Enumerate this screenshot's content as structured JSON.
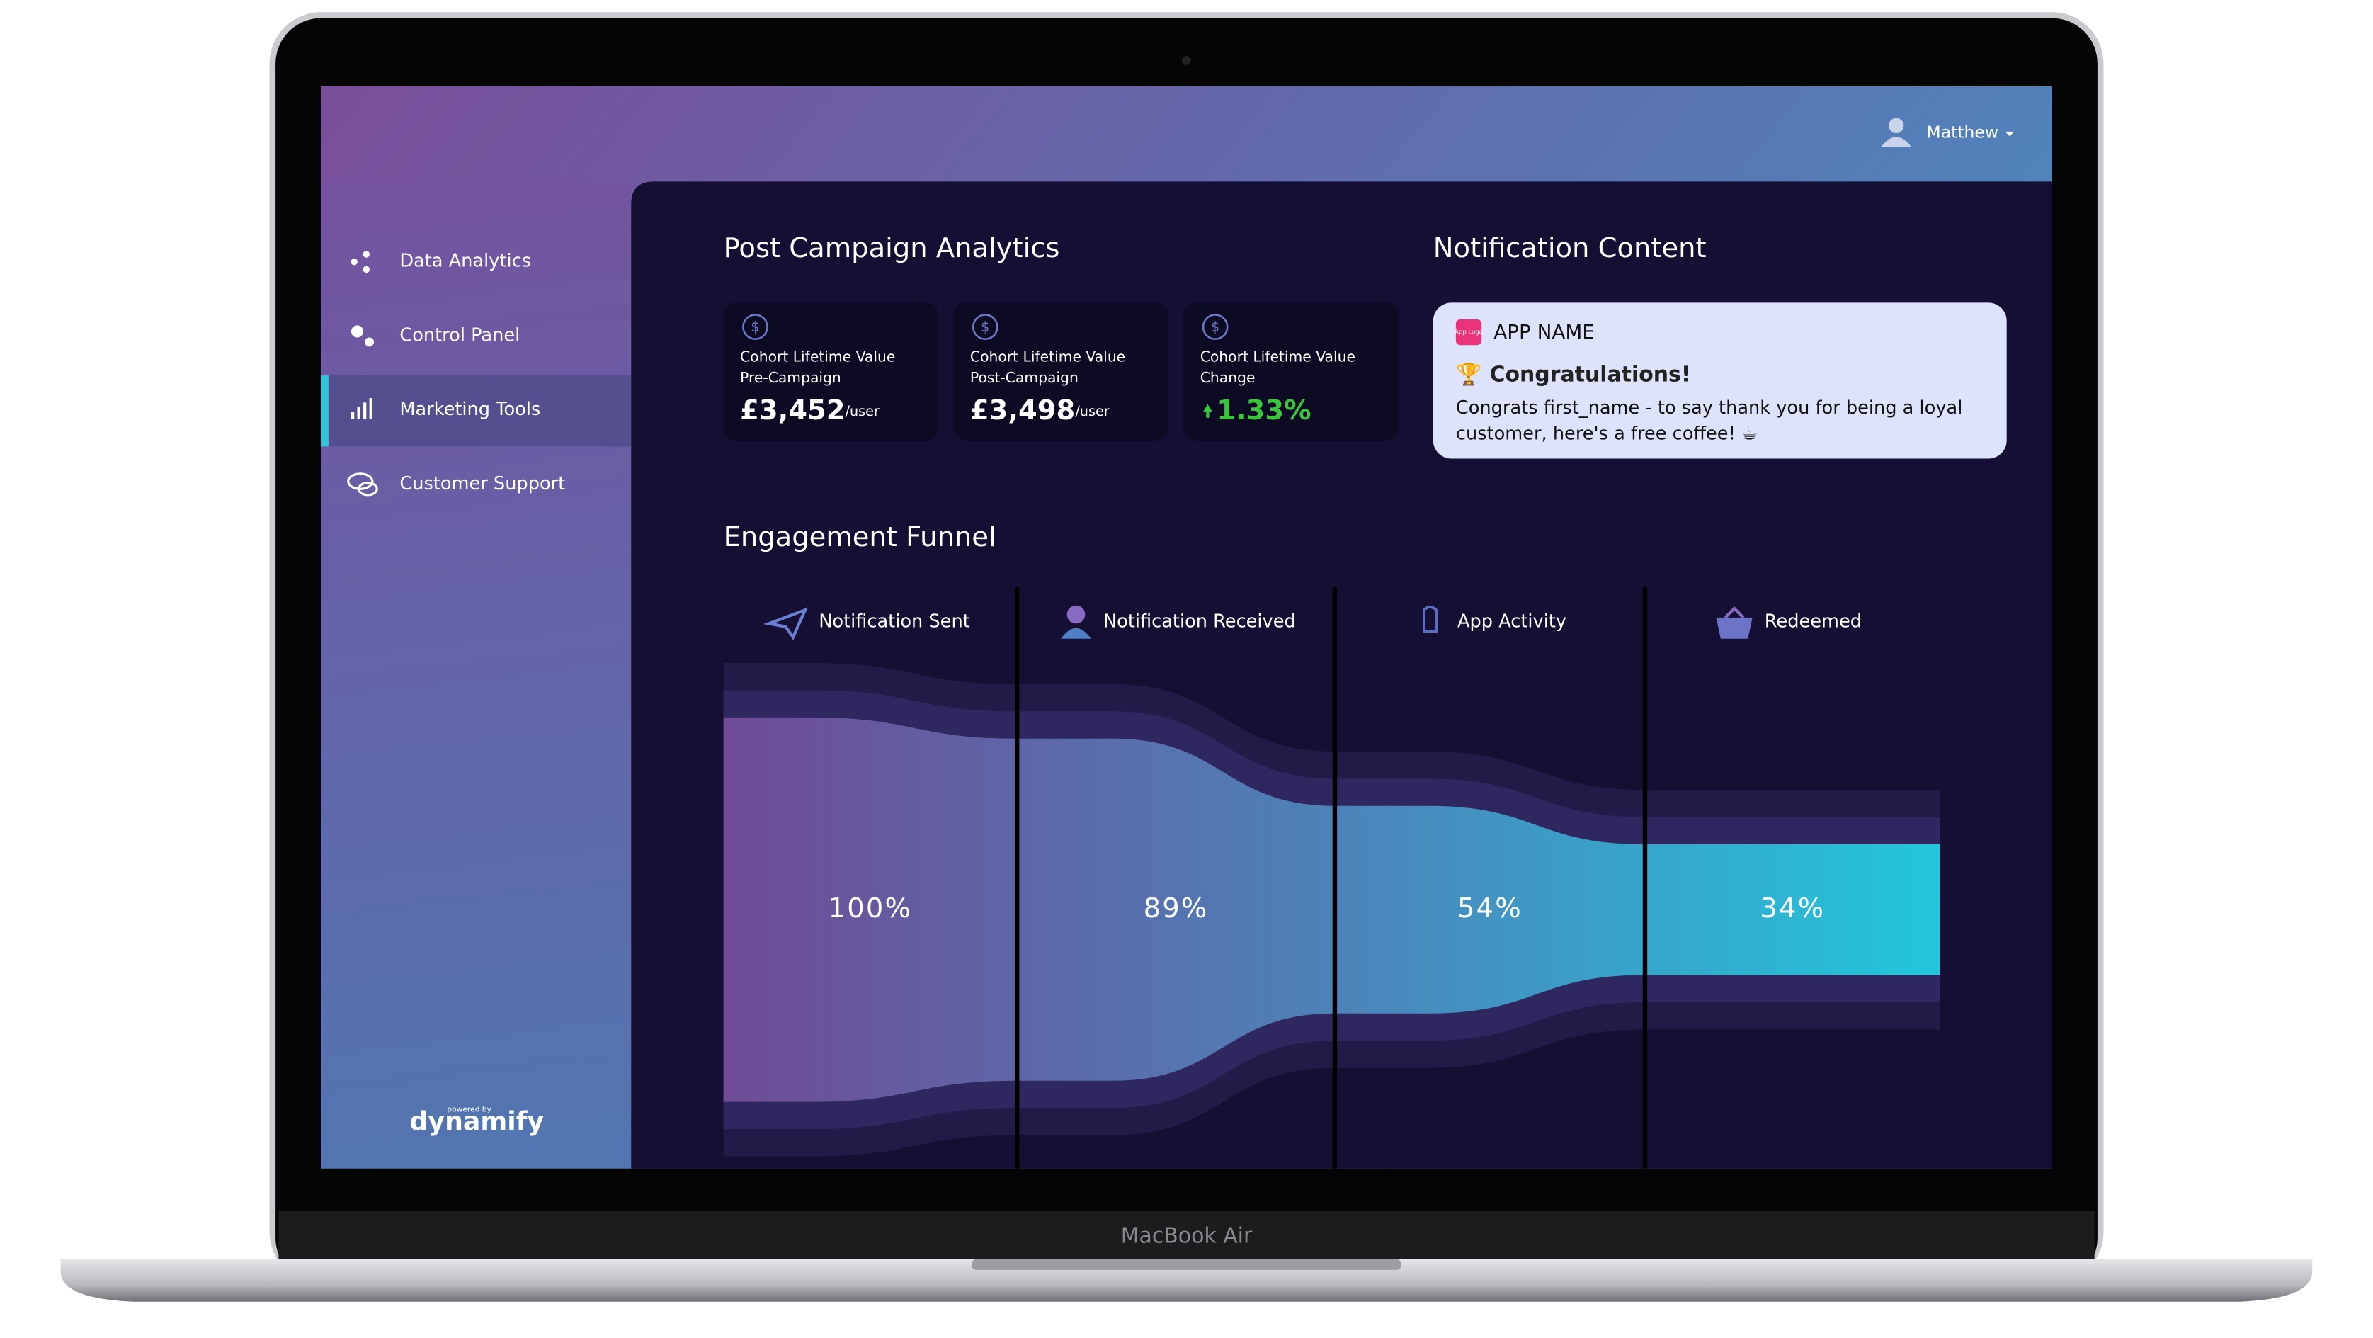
{
  "header": {
    "user": "Matthew"
  },
  "sidebar": {
    "items": [
      "Data Analytics",
      "Control Panel",
      "Marketing Tools",
      "Customer Support"
    ],
    "powered": "powered by",
    "brand": "dynamify"
  },
  "device_label": "MacBook Air",
  "analytics": {
    "title": "Post Campaign Analytics",
    "cards": [
      {
        "label1": "Cohort Lifetime Value",
        "label2": "Pre-Campaign",
        "value": "£3,452",
        "unit": "/user"
      },
      {
        "label1": "Cohort Lifetime Value",
        "label2": "Post-Campaign",
        "value": "£3,498",
        "unit": "/user"
      },
      {
        "label1": "Cohort Lifetime Value",
        "label2": "Change",
        "value": "1.33%"
      }
    ]
  },
  "notification": {
    "title": "Notification Content",
    "app_logo": "App Logo",
    "app_name": "APP NAME",
    "headline": "🏆 Congratulations!",
    "body_lines": [
      "Congrats first_name - to say thank you for being a loyal",
      "customer, here's a free coffee! ☕"
    ]
  },
  "chart_data": {
    "type": "funnel",
    "title": "Engagement Funnel",
    "categories": [
      "Notification Sent",
      "Notification Received",
      "App Activity",
      "Redeemed"
    ],
    "values": [
      100,
      89,
      54,
      34
    ],
    "value_labels": [
      "100%",
      "89%",
      "54%",
      "34%"
    ]
  }
}
